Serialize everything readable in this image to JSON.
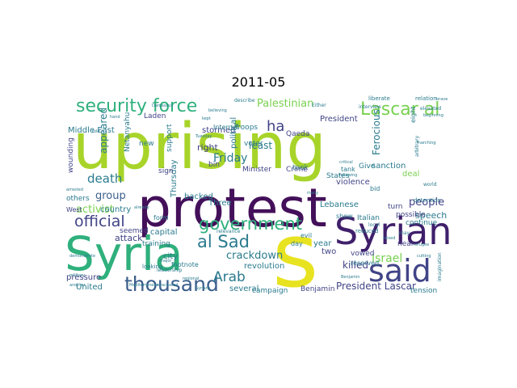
{
  "title": "2011-05",
  "colors": {
    "green": "#a8d42a",
    "yellow": "#e8e320",
    "purple": "#44105a",
    "dpurple": "#3f1f6b",
    "teal": "#2a7b8e",
    "blue": "#3b5e8c",
    "sea": "#2fb07c",
    "lime": "#7ad151",
    "indigo": "#414487",
    "mint": "#5ec962"
  },
  "words": [
    {
      "text": "uprising",
      "color": "green"
    },
    {
      "text": "protest",
      "color": "purple"
    },
    {
      "text": "Syria",
      "color": "sea"
    },
    {
      "text": "Syrian",
      "color": "dpurple"
    },
    {
      "text": "s",
      "color": "yellow"
    },
    {
      "text": "said",
      "color": "indigo"
    },
    {
      "text": "security force",
      "color": "sea"
    },
    {
      "text": "Lascar al",
      "color": "lime"
    },
    {
      "text": "government",
      "color": "sea"
    },
    {
      "text": "thousand",
      "color": "blue"
    },
    {
      "text": "al Sad",
      "color": "teal"
    },
    {
      "text": "Arab",
      "color": "teal"
    },
    {
      "text": "Palestinian",
      "color": "lime"
    },
    {
      "text": "official",
      "color": "indigo"
    },
    {
      "text": "activist",
      "color": "lime"
    },
    {
      "text": "death",
      "color": "teal"
    },
    {
      "text": "group",
      "color": "blue"
    },
    {
      "text": "people",
      "color": "indigo"
    },
    {
      "text": "crackdown",
      "color": "teal"
    },
    {
      "text": "Friday",
      "color": "teal"
    },
    {
      "text": "President Lascar",
      "color": "indigo"
    },
    {
      "text": "Israel",
      "color": "lime"
    },
    {
      "text": "killed",
      "color": "indigo"
    },
    {
      "text": "ha",
      "color": "indigo"
    },
    {
      "text": "Ferocious",
      "color": "teal"
    },
    {
      "text": "right",
      "color": "indigo"
    },
    {
      "text": "appeared",
      "color": "teal"
    },
    {
      "text": "Middle East",
      "color": "teal"
    },
    {
      "text": "speech",
      "color": "teal"
    },
    {
      "text": "attack",
      "color": "indigo"
    },
    {
      "text": "revolution",
      "color": "teal"
    },
    {
      "text": "two",
      "color": "indigo"
    },
    {
      "text": "year",
      "color": "teal"
    },
    {
      "text": "Lebanese",
      "color": "teal"
    },
    {
      "text": "several",
      "color": "teal"
    },
    {
      "text": "campaign",
      "color": "teal"
    },
    {
      "text": "Benjamin",
      "color": "indigo"
    },
    {
      "text": "tension",
      "color": "teal"
    },
    {
      "text": "United",
      "color": "teal"
    },
    {
      "text": "pressure",
      "color": "indigo"
    },
    {
      "text": "capital",
      "color": "teal"
    },
    {
      "text": "city",
      "color": "teal"
    },
    {
      "text": "Thursday",
      "color": "teal"
    },
    {
      "text": "seemed",
      "color": "indigo"
    },
    {
      "text": "support",
      "color": "teal"
    },
    {
      "text": "Laden",
      "color": "indigo"
    },
    {
      "text": "stormed",
      "color": "indigo"
    },
    {
      "text": "President",
      "color": "indigo"
    },
    {
      "text": "States",
      "color": "teal"
    },
    {
      "text": "took",
      "color": "teal"
    },
    {
      "text": "violence",
      "color": "indigo"
    },
    {
      "text": "Give",
      "color": "teal"
    },
    {
      "text": "Minister",
      "color": "indigo"
    },
    {
      "text": "Crime",
      "color": "indigo"
    },
    {
      "text": "Qaeda",
      "color": "indigo"
    },
    {
      "text": "Troops",
      "color": "teal"
    },
    {
      "text": "voter",
      "color": "teal"
    },
    {
      "text": "least",
      "color": "teal"
    },
    {
      "text": "sanction",
      "color": "teal"
    },
    {
      "text": "deal",
      "color": "lime"
    },
    {
      "text": "possible",
      "color": "indigo"
    },
    {
      "text": "continue",
      "color": "teal"
    },
    {
      "text": "Italian",
      "color": "teal"
    },
    {
      "text": "turn",
      "color": "indigo"
    },
    {
      "text": "near",
      "color": "indigo"
    },
    {
      "text": "vowed",
      "color": "indigo"
    },
    {
      "text": "reserved",
      "color": "teal"
    },
    {
      "text": "country",
      "color": "teal"
    },
    {
      "text": "others",
      "color": "teal"
    },
    {
      "text": "West",
      "color": "indigo"
    },
    {
      "text": "wounding",
      "color": "indigo"
    },
    {
      "text": "Netanyahu",
      "color": "teal"
    },
    {
      "text": "new",
      "color": "teal"
    },
    {
      "text": "sign",
      "color": "indigo"
    },
    {
      "text": "backed",
      "color": "teal"
    },
    {
      "text": "Three",
      "color": "teal"
    },
    {
      "text": "political",
      "color": "teal"
    },
    {
      "text": "bin",
      "color": "indigo"
    },
    {
      "text": "Internet",
      "color": "teal"
    },
    {
      "text": "training",
      "color": "teal"
    },
    {
      "text": "footnote",
      "color": "teal"
    },
    {
      "text": "form",
      "color": "teal"
    },
    {
      "text": "liberate",
      "color": "teal"
    },
    {
      "text": "relation",
      "color": "teal"
    },
    {
      "text": "interview",
      "color": "teal"
    },
    {
      "text": "elevated",
      "color": "teal"
    },
    {
      "text": "describe",
      "color": "teal"
    },
    {
      "text": "Either",
      "color": "teal"
    },
    {
      "text": "tank",
      "color": "teal"
    },
    {
      "text": "bid",
      "color": "teal"
    },
    {
      "text": "show",
      "color": "teal"
    },
    {
      "text": "reduced",
      "color": "teal"
    },
    {
      "text": "day",
      "color": "teal"
    },
    {
      "text": "looking",
      "color": "teal"
    },
    {
      "text": "detention",
      "color": "teal"
    },
    {
      "text": "arbitrary",
      "color": "teal"
    },
    {
      "text": "world",
      "color": "teal"
    },
    {
      "text": "eight",
      "color": "teal"
    },
    {
      "text": "imagination",
      "color": "teal"
    },
    {
      "text": "leadership",
      "color": "teal"
    },
    {
      "text": "relevance",
      "color": "teal"
    },
    {
      "text": "Mediterranean",
      "color": "teal"
    },
    {
      "text": "evacuated",
      "color": "teal"
    },
    {
      "text": "already",
      "color": "teal"
    },
    {
      "text": "arrested",
      "color": "teal"
    },
    {
      "text": "Tuesday",
      "color": "teal"
    },
    {
      "text": "Damascus",
      "color": "teal"
    },
    {
      "text": "hand",
      "color": "teal"
    },
    {
      "text": "told",
      "color": "teal"
    },
    {
      "text": "military",
      "color": "teal"
    },
    {
      "text": "beginning",
      "color": "teal"
    },
    {
      "text": "marching",
      "color": "teal"
    },
    {
      "text": "refugee",
      "color": "teal"
    },
    {
      "text": "cutting",
      "color": "teal"
    },
    {
      "text": "another",
      "color": "teal"
    },
    {
      "text": "evil",
      "color": "teal"
    },
    {
      "text": "Benjamin",
      "color": "teal"
    },
    {
      "text": "local",
      "color": "teal"
    },
    {
      "text": "raised",
      "color": "teal"
    },
    {
      "text": "demonstrate",
      "color": "teal"
    },
    {
      "text": "critical",
      "color": "teal"
    },
    {
      "text": "Syrians",
      "color": "teal"
    },
    {
      "text": "regional",
      "color": "teal"
    },
    {
      "text": "many",
      "color": "teal"
    },
    {
      "text": "kept",
      "color": "teal"
    },
    {
      "text": "may",
      "color": "teal"
    },
    {
      "text": "major",
      "color": "teal"
    },
    {
      "text": "brave",
      "color": "teal"
    },
    {
      "text": "following",
      "color": "teal"
    },
    {
      "text": "believing",
      "color": "teal"
    }
  ]
}
